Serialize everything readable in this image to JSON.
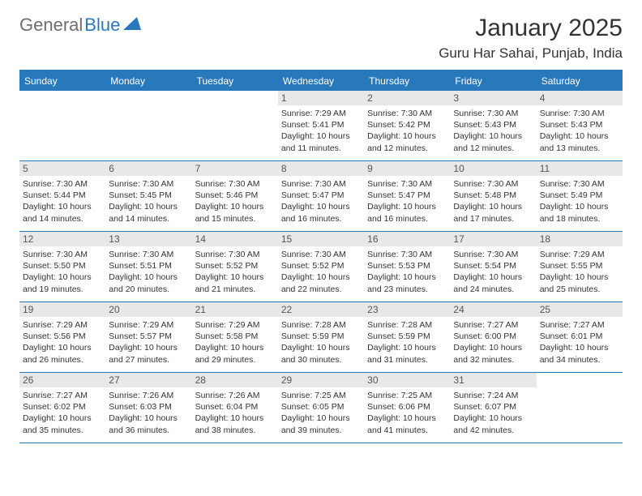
{
  "logo": {
    "text_gray": "General",
    "text_blue": "Blue"
  },
  "title": "January 2025",
  "location": "Guru Har Sahai, Punjab, India",
  "colors": {
    "accent": "#2878bc",
    "header_text": "#ffffff",
    "daynum_bg": "#e8e8e8",
    "body_text": "#333333",
    "logo_gray": "#6d6e71"
  },
  "day_headers": [
    "Sunday",
    "Monday",
    "Tuesday",
    "Wednesday",
    "Thursday",
    "Friday",
    "Saturday"
  ],
  "weeks": [
    [
      null,
      null,
      null,
      {
        "n": "1",
        "sunrise": "7:29 AM",
        "sunset": "5:41 PM",
        "dlh": "10",
        "dlm": "11"
      },
      {
        "n": "2",
        "sunrise": "7:30 AM",
        "sunset": "5:42 PM",
        "dlh": "10",
        "dlm": "12"
      },
      {
        "n": "3",
        "sunrise": "7:30 AM",
        "sunset": "5:43 PM",
        "dlh": "10",
        "dlm": "12"
      },
      {
        "n": "4",
        "sunrise": "7:30 AM",
        "sunset": "5:43 PM",
        "dlh": "10",
        "dlm": "13"
      }
    ],
    [
      {
        "n": "5",
        "sunrise": "7:30 AM",
        "sunset": "5:44 PM",
        "dlh": "10",
        "dlm": "14"
      },
      {
        "n": "6",
        "sunrise": "7:30 AM",
        "sunset": "5:45 PM",
        "dlh": "10",
        "dlm": "14"
      },
      {
        "n": "7",
        "sunrise": "7:30 AM",
        "sunset": "5:46 PM",
        "dlh": "10",
        "dlm": "15"
      },
      {
        "n": "8",
        "sunrise": "7:30 AM",
        "sunset": "5:47 PM",
        "dlh": "10",
        "dlm": "16"
      },
      {
        "n": "9",
        "sunrise": "7:30 AM",
        "sunset": "5:47 PM",
        "dlh": "10",
        "dlm": "16"
      },
      {
        "n": "10",
        "sunrise": "7:30 AM",
        "sunset": "5:48 PM",
        "dlh": "10",
        "dlm": "17"
      },
      {
        "n": "11",
        "sunrise": "7:30 AM",
        "sunset": "5:49 PM",
        "dlh": "10",
        "dlm": "18"
      }
    ],
    [
      {
        "n": "12",
        "sunrise": "7:30 AM",
        "sunset": "5:50 PM",
        "dlh": "10",
        "dlm": "19"
      },
      {
        "n": "13",
        "sunrise": "7:30 AM",
        "sunset": "5:51 PM",
        "dlh": "10",
        "dlm": "20"
      },
      {
        "n": "14",
        "sunrise": "7:30 AM",
        "sunset": "5:52 PM",
        "dlh": "10",
        "dlm": "21"
      },
      {
        "n": "15",
        "sunrise": "7:30 AM",
        "sunset": "5:52 PM",
        "dlh": "10",
        "dlm": "22"
      },
      {
        "n": "16",
        "sunrise": "7:30 AM",
        "sunset": "5:53 PM",
        "dlh": "10",
        "dlm": "23"
      },
      {
        "n": "17",
        "sunrise": "7:30 AM",
        "sunset": "5:54 PM",
        "dlh": "10",
        "dlm": "24"
      },
      {
        "n": "18",
        "sunrise": "7:29 AM",
        "sunset": "5:55 PM",
        "dlh": "10",
        "dlm": "25"
      }
    ],
    [
      {
        "n": "19",
        "sunrise": "7:29 AM",
        "sunset": "5:56 PM",
        "dlh": "10",
        "dlm": "26"
      },
      {
        "n": "20",
        "sunrise": "7:29 AM",
        "sunset": "5:57 PM",
        "dlh": "10",
        "dlm": "27"
      },
      {
        "n": "21",
        "sunrise": "7:29 AM",
        "sunset": "5:58 PM",
        "dlh": "10",
        "dlm": "29"
      },
      {
        "n": "22",
        "sunrise": "7:28 AM",
        "sunset": "5:59 PM",
        "dlh": "10",
        "dlm": "30"
      },
      {
        "n": "23",
        "sunrise": "7:28 AM",
        "sunset": "5:59 PM",
        "dlh": "10",
        "dlm": "31"
      },
      {
        "n": "24",
        "sunrise": "7:27 AM",
        "sunset": "6:00 PM",
        "dlh": "10",
        "dlm": "32"
      },
      {
        "n": "25",
        "sunrise": "7:27 AM",
        "sunset": "6:01 PM",
        "dlh": "10",
        "dlm": "34"
      }
    ],
    [
      {
        "n": "26",
        "sunrise": "7:27 AM",
        "sunset": "6:02 PM",
        "dlh": "10",
        "dlm": "35"
      },
      {
        "n": "27",
        "sunrise": "7:26 AM",
        "sunset": "6:03 PM",
        "dlh": "10",
        "dlm": "36"
      },
      {
        "n": "28",
        "sunrise": "7:26 AM",
        "sunset": "6:04 PM",
        "dlh": "10",
        "dlm": "38"
      },
      {
        "n": "29",
        "sunrise": "7:25 AM",
        "sunset": "6:05 PM",
        "dlh": "10",
        "dlm": "39"
      },
      {
        "n": "30",
        "sunrise": "7:25 AM",
        "sunset": "6:06 PM",
        "dlh": "10",
        "dlm": "41"
      },
      {
        "n": "31",
        "sunrise": "7:24 AM",
        "sunset": "6:07 PM",
        "dlh": "10",
        "dlm": "42"
      },
      null
    ]
  ]
}
